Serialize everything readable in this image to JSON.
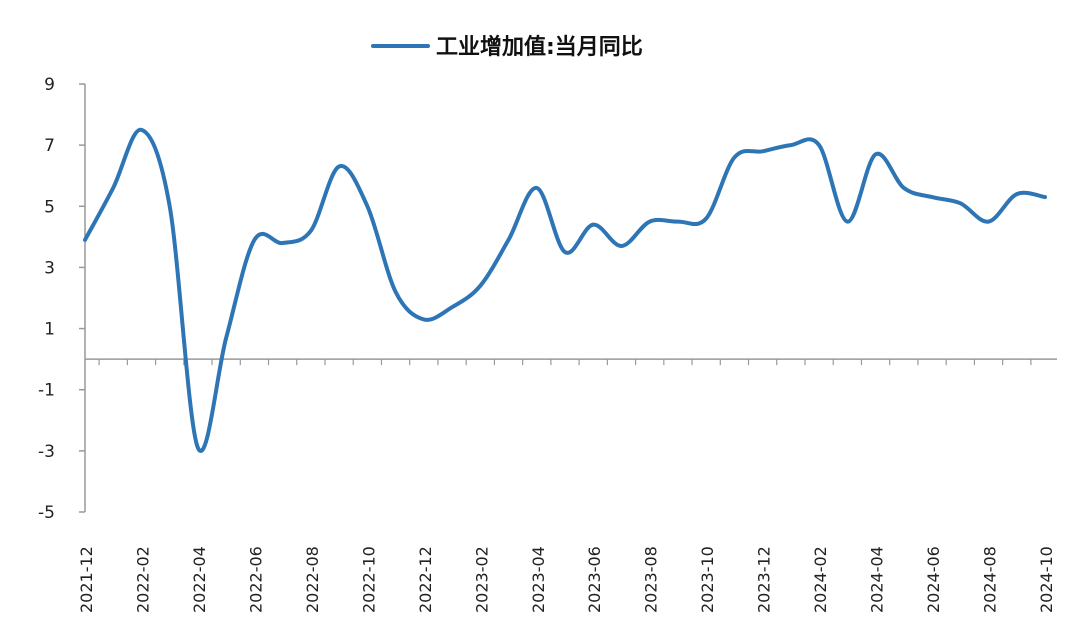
{
  "chart_data": {
    "type": "line",
    "title": "",
    "xlabel": "",
    "ylabel": "",
    "ylim": [
      -5,
      9
    ],
    "yticks": [
      -5,
      -3,
      -1,
      1,
      3,
      5,
      7,
      9
    ],
    "x_tick_labels": [
      "2021-12",
      "2022-02",
      "2022-04",
      "2022-06",
      "2022-08",
      "2022-10",
      "2022-12",
      "2023-02",
      "2023-04",
      "2023-06",
      "2023-08",
      "2023-10",
      "2023-12",
      "2024-02",
      "2024-04",
      "2024-06",
      "2024-08",
      "2024-10"
    ],
    "legend": {
      "position": "top-center"
    },
    "grid": false,
    "color": "#2e75b6",
    "series": [
      {
        "name": "工业增加值:当月同比",
        "x": [
          "2021-12",
          "2022-01",
          "2022-02",
          "2022-03",
          "2022-04",
          "2022-05",
          "2022-06",
          "2022-07",
          "2022-08",
          "2022-09",
          "2022-10",
          "2022-11",
          "2022-12",
          "2023-01",
          "2023-02",
          "2023-03",
          "2023-04",
          "2023-05",
          "2023-06",
          "2023-07",
          "2023-08",
          "2023-09",
          "2023-10",
          "2023-11",
          "2023-12",
          "2024-01",
          "2024-02",
          "2024-03",
          "2024-04",
          "2024-05",
          "2024-06",
          "2024-07",
          "2024-08",
          "2024-09",
          "2024-10"
        ],
        "values": [
          3.9,
          5.6,
          7.5,
          5.0,
          -2.9,
          0.7,
          3.9,
          3.8,
          4.2,
          6.3,
          5.0,
          2.2,
          1.3,
          1.7,
          2.4,
          3.9,
          5.6,
          3.5,
          4.4,
          3.7,
          4.5,
          4.5,
          4.6,
          6.6,
          6.8,
          7.0,
          7.0,
          4.5,
          6.7,
          5.6,
          5.3,
          5.1,
          4.5,
          5.4,
          5.3
        ]
      }
    ]
  }
}
